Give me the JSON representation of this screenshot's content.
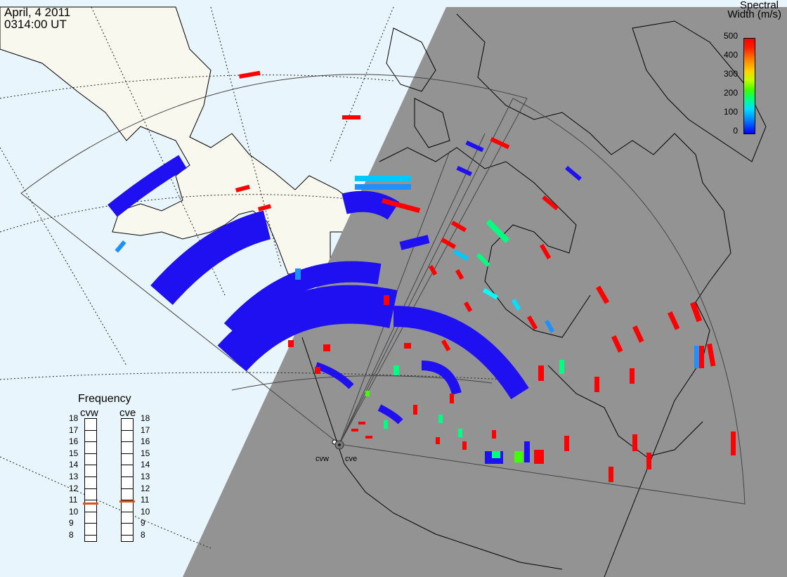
{
  "header": {
    "date": "April, 4 2011",
    "time": "0314:00 UT"
  },
  "legend": {
    "title": "Spectral",
    "unit": "Width (m/s)",
    "ticks": [
      "500",
      "400",
      "300",
      "200",
      "100",
      "0"
    ],
    "scale_min": 0,
    "scale_max": 500,
    "colors": {
      "low": "#0000ff",
      "mid_low": "#00e0ff",
      "mid": "#40ff00",
      "mid_high": "#ffd000",
      "high": "#ff0000"
    }
  },
  "frequency_panel": {
    "title": "Frequency",
    "radars": [
      {
        "name": "cvw",
        "selected_mhz": 10.7
      },
      {
        "name": "cve",
        "selected_mhz": 10.9
      }
    ],
    "scale": [
      "18",
      "17",
      "16",
      "15",
      "14",
      "13",
      "12",
      "11",
      "10",
      "9",
      "8"
    ]
  },
  "radar_sites": {
    "west": "cvw",
    "east": "cve"
  },
  "map_colors": {
    "ocean": "#e8f5fc",
    "land": "#f9f8ee",
    "night": "#939393",
    "coast": "#000000",
    "backscatter_low": "#1e10f0"
  }
}
